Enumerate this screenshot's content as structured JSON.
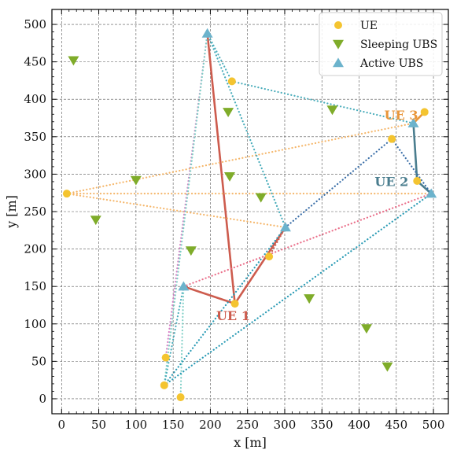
{
  "chart_data": {
    "type": "scatter",
    "xlabel": "x [m]",
    "ylabel": "y [m]",
    "xlim": [
      -13,
      520
    ],
    "ylim": [
      -20,
      520
    ],
    "xticks": [
      0,
      50,
      100,
      150,
      200,
      250,
      300,
      350,
      400,
      450,
      500
    ],
    "yticks": [
      0,
      50,
      100,
      150,
      200,
      250,
      300,
      350,
      400,
      450,
      500
    ],
    "grid": true,
    "legend_position": "top-right",
    "series": [
      {
        "name": "UE",
        "marker": "circle",
        "color": "#f4c430",
        "points": [
          [
            7,
            274
          ],
          [
            140,
            55
          ],
          [
            138,
            18
          ],
          [
            160,
            2
          ],
          [
            233,
            127
          ],
          [
            279,
            190
          ],
          [
            229,
            424
          ],
          [
            444,
            347
          ],
          [
            478,
            291
          ],
          [
            488,
            383
          ]
        ]
      },
      {
        "name": "Sleeping UBS",
        "marker": "triangle-down",
        "color": "#7fac2a",
        "points": [
          [
            16,
            452
          ],
          [
            46,
            239
          ],
          [
            100,
            292
          ],
          [
            174,
            198
          ],
          [
            224,
            383
          ],
          [
            226,
            297
          ],
          [
            268,
            269
          ],
          [
            333,
            134
          ],
          [
            364,
            386
          ],
          [
            410,
            94
          ],
          [
            438,
            43
          ]
        ]
      },
      {
        "name": "Active UBS",
        "marker": "triangle-up",
        "color": "#6cb3cc",
        "points": [
          [
            196,
            488
          ],
          [
            164,
            150
          ],
          [
            301,
            229
          ],
          [
            473,
            368
          ],
          [
            497,
            274
          ]
        ]
      }
    ],
    "links": [
      {
        "from": [
          196,
          488
        ],
        "to": [
          233,
          127
        ],
        "color": "#cd5c4e",
        "style": "solid"
      },
      {
        "from": [
          164,
          150
        ],
        "to": [
          233,
          127
        ],
        "color": "#cd5c4e",
        "style": "solid"
      },
      {
        "from": [
          301,
          229
        ],
        "to": [
          233,
          127
        ],
        "color": "#cd5c4e",
        "style": "solid"
      },
      {
        "from": [
          473,
          368
        ],
        "to": [
          478,
          291
        ],
        "color": "#4a7d8e",
        "style": "solid"
      },
      {
        "from": [
          478,
          291
        ],
        "to": [
          497,
          274
        ],
        "color": "#4a7d8e",
        "style": "solid"
      },
      {
        "from": [
          473,
          368
        ],
        "to": [
          488,
          383
        ],
        "color": "#e9963a",
        "style": "solid"
      },
      {
        "from": [
          7,
          274
        ],
        "to": [
          473,
          368
        ],
        "color": "#f5b66a",
        "style": "dotted"
      },
      {
        "from": [
          7,
          274
        ],
        "to": [
          497,
          274
        ],
        "color": "#f5b66a",
        "style": "dotted"
      },
      {
        "from": [
          7,
          274
        ],
        "to": [
          301,
          229
        ],
        "color": "#f5b66a",
        "style": "dotted"
      },
      {
        "from": [
          196,
          488
        ],
        "to": [
          229,
          424
        ],
        "color": "#4aadbb",
        "style": "dotted"
      },
      {
        "from": [
          229,
          424
        ],
        "to": [
          473,
          368
        ],
        "color": "#4aadbb",
        "style": "dotted"
      },
      {
        "from": [
          196,
          488
        ],
        "to": [
          301,
          229
        ],
        "color": "#4aadbb",
        "style": "dotted"
      },
      {
        "from": [
          196,
          488
        ],
        "to": [
          140,
          55
        ],
        "color": "#d67fc5",
        "style": "dotted"
      },
      {
        "from": [
          196,
          488
        ],
        "to": [
          138,
          18
        ],
        "color": "#7fcfc6",
        "style": "dotted"
      },
      {
        "from": [
          164,
          150
        ],
        "to": [
          160,
          2
        ],
        "color": "#7fcfc6",
        "style": "dotted"
      },
      {
        "from": [
          164,
          150
        ],
        "to": [
          138,
          18
        ],
        "color": "#4aadbb",
        "style": "dotted"
      },
      {
        "from": [
          301,
          229
        ],
        "to": [
          138,
          18
        ],
        "color": "#2a9bb5",
        "style": "dotted"
      },
      {
        "from": [
          301,
          229
        ],
        "to": [
          279,
          190
        ],
        "color": "#cd5c4e",
        "style": "dotted"
      },
      {
        "from": [
          164,
          150
        ],
        "to": [
          497,
          274
        ],
        "color": "#ea6f8a",
        "style": "dotted"
      },
      {
        "from": [
          138,
          18
        ],
        "to": [
          497,
          274
        ],
        "color": "#2a9bb5",
        "style": "dotted"
      },
      {
        "from": [
          301,
          229
        ],
        "to": [
          444,
          347
        ],
        "color": "#3b6fa8",
        "style": "dotted"
      },
      {
        "from": [
          444,
          347
        ],
        "to": [
          497,
          274
        ],
        "color": "#3b6fa8",
        "style": "dotted"
      }
    ],
    "annotations": [
      {
        "text": "UE 1",
        "at": [
          208,
          105
        ],
        "color": "#cd5c4e"
      },
      {
        "text": "UE 2",
        "at": [
          421,
          284
        ],
        "color": "#4a7d8e"
      },
      {
        "text": "UE 3",
        "at": [
          434,
          373
        ],
        "color": "#e9963a"
      }
    ]
  }
}
